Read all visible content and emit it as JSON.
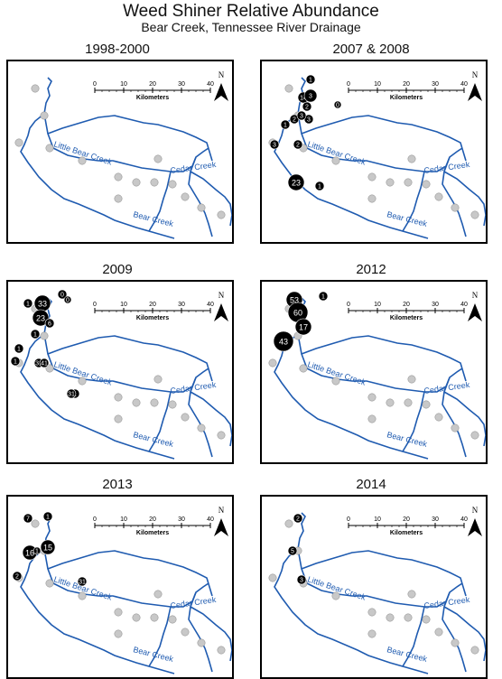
{
  "header": {
    "title": "Weed Shiner Relative Abundance",
    "subtitle": "Bear Creek, Tennessee River Drainage"
  },
  "colors": {
    "stream": "#1f5bb0",
    "absent_site": "#c8c8c8",
    "present_site": "#000000",
    "label": "#1f5bb0"
  },
  "map_labels": {
    "scale_ticks": [
      "0",
      "10",
      "20",
      "30",
      "40"
    ],
    "scale_unit": "Kilometers",
    "north": "N",
    "little_bear_creek": "Little Bear Creek",
    "cedar_creek": "Cedar Creek",
    "bear_creek": "Bear Creek"
  },
  "panels": [
    {
      "title": "1998-2000",
      "counts": []
    },
    {
      "title": "2007 & 2008",
      "counts": [
        "1",
        "14",
        "3",
        "2",
        "3",
        "1",
        "2",
        "3",
        "3",
        "2",
        "23",
        "1",
        "0"
      ]
    },
    {
      "title": "2009",
      "counts": [
        "1",
        "33",
        "23",
        "0",
        "0",
        "1",
        "6",
        "1",
        "1",
        "31",
        "41",
        "1",
        "31"
      ]
    },
    {
      "title": "2012",
      "counts": [
        "53",
        "60",
        "17",
        "1",
        "43"
      ]
    },
    {
      "title": "2013",
      "counts": [
        "7",
        "1",
        "15",
        "16",
        "1",
        "2",
        "31"
      ]
    },
    {
      "title": "2014",
      "counts": [
        "2",
        "5",
        "3"
      ]
    }
  ]
}
